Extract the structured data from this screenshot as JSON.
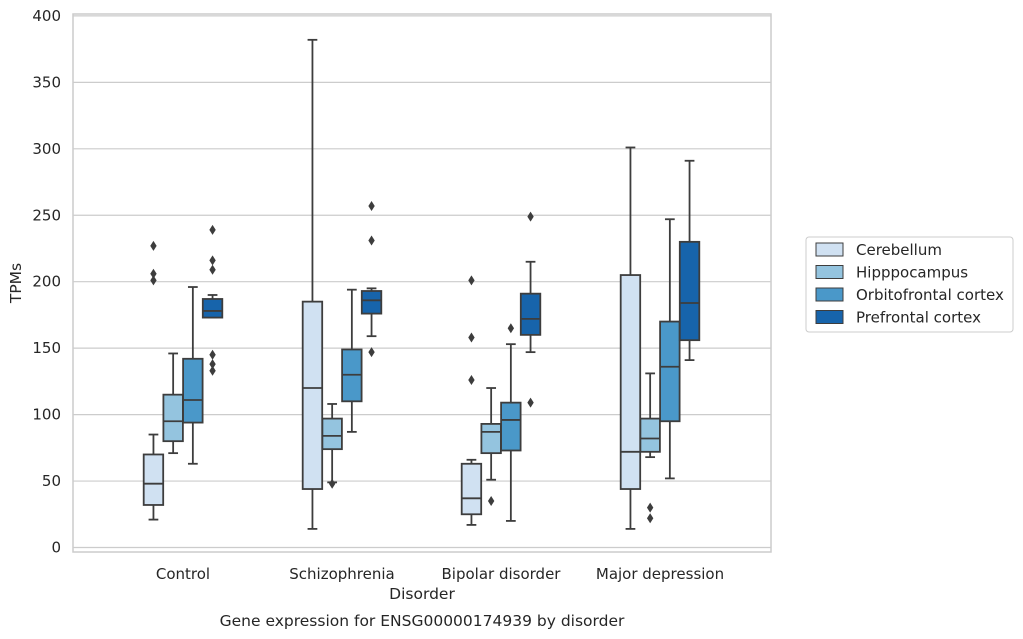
{
  "chart_data": {
    "type": "box",
    "xlabel": "Disorder",
    "ylabel": "TPMs",
    "caption": "Gene expression for ENSG00000174939 by disorder",
    "ylim": [
      -5,
      402
    ],
    "yticks": [
      0,
      50,
      100,
      150,
      200,
      250,
      300,
      350,
      400
    ],
    "grid": "horizontal",
    "legend_placement": "right",
    "categories": [
      "Control",
      "Schizophrenia",
      "Bipolar disorder",
      "Major depression"
    ],
    "series": [
      {
        "name": "Cerebellum",
        "color": "#d0e1f2",
        "boxes": [
          {
            "whislo": 21,
            "q1": 32,
            "med": 48,
            "q3": 70,
            "whishi": 85,
            "fliers": [
              201,
              206,
              227
            ]
          },
          {
            "whislo": 14,
            "q1": 44,
            "med": 120,
            "q3": 185,
            "whishi": 382,
            "fliers": []
          },
          {
            "whislo": 17,
            "q1": 25,
            "med": 37,
            "q3": 63,
            "whishi": 66,
            "fliers": [
              126,
              158,
              201
            ]
          },
          {
            "whislo": 14,
            "q1": 44,
            "med": 72,
            "q3": 205,
            "whishi": 301,
            "fliers": []
          }
        ]
      },
      {
        "name": "Hipppocampus",
        "color": "#94c4df",
        "boxes": [
          {
            "whislo": 71,
            "q1": 80,
            "med": 95,
            "q3": 115,
            "whishi": 146,
            "fliers": []
          },
          {
            "whislo": 49,
            "q1": 74,
            "med": 84,
            "q3": 97,
            "whishi": 108,
            "fliers": [
              48
            ]
          },
          {
            "whislo": 51,
            "q1": 71,
            "med": 87,
            "q3": 93,
            "whishi": 120,
            "fliers": [
              35
            ]
          },
          {
            "whislo": 68,
            "q1": 72,
            "med": 82,
            "q3": 97,
            "whishi": 131,
            "fliers": [
              22,
              30
            ]
          }
        ]
      },
      {
        "name": "Orbitofrontal cortex",
        "color": "#4a98c9",
        "boxes": [
          {
            "whislo": 63,
            "q1": 94,
            "med": 111,
            "q3": 142,
            "whishi": 196,
            "fliers": []
          },
          {
            "whislo": 87,
            "q1": 110,
            "med": 130,
            "q3": 149,
            "whishi": 194,
            "fliers": []
          },
          {
            "whislo": 20,
            "q1": 73,
            "med": 96,
            "q3": 109,
            "whishi": 153,
            "fliers": [
              165
            ]
          },
          {
            "whislo": 52,
            "q1": 95,
            "med": 136,
            "q3": 170,
            "whishi": 247,
            "fliers": []
          }
        ]
      },
      {
        "name": "Prefrontal cortex",
        "color": "#1764ab",
        "boxes": [
          {
            "whislo": 173,
            "q1": 173,
            "med": 178,
            "q3": 187,
            "whishi": 190,
            "fliers": [
              133,
              138,
              145,
              209,
              216,
              239
            ]
          },
          {
            "whislo": 159,
            "q1": 176,
            "med": 186,
            "q3": 193,
            "whishi": 195,
            "fliers": [
              147,
              231,
              257
            ]
          },
          {
            "whislo": 147,
            "q1": 160,
            "med": 172,
            "q3": 191,
            "whishi": 215,
            "fliers": [
              109,
              249
            ]
          },
          {
            "whislo": 141,
            "q1": 156,
            "med": 184,
            "q3": 230,
            "whishi": 291,
            "fliers": []
          }
        ]
      }
    ]
  }
}
